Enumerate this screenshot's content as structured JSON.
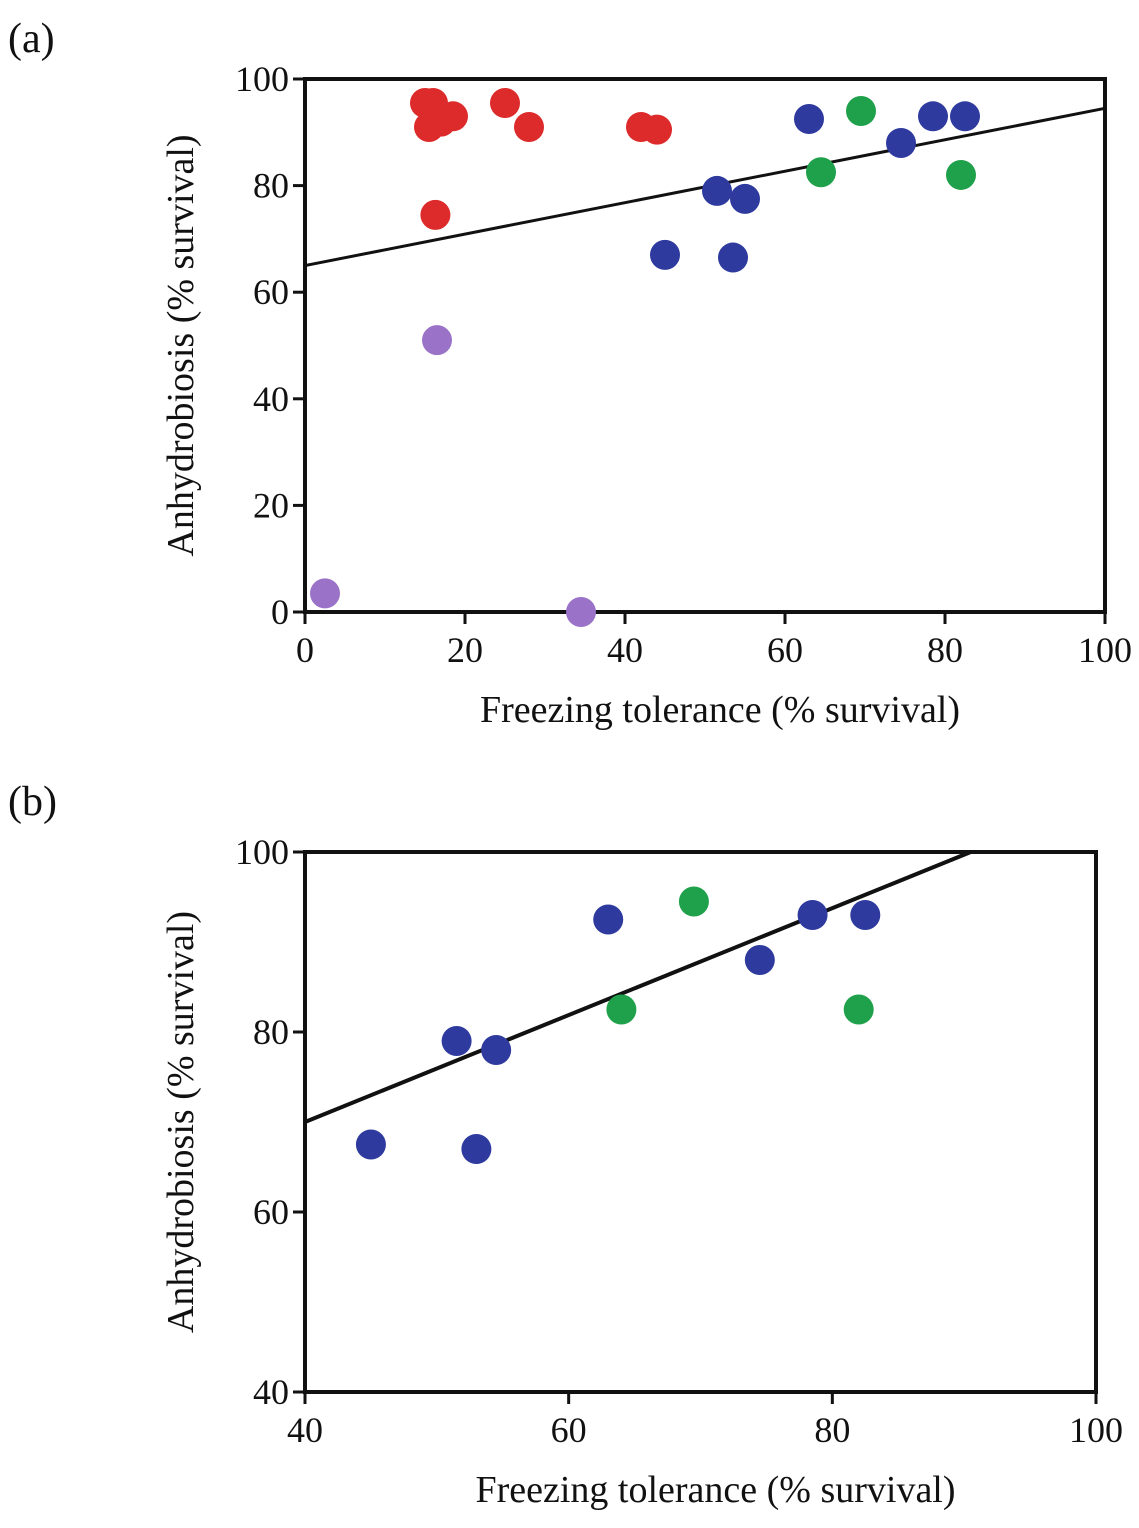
{
  "colors": {
    "red": "#dd2a2a",
    "blue": "#2e3a9e",
    "green": "#1fa04a",
    "purple": "#9a73c9",
    "line": "#111111"
  },
  "chart_data": [
    {
      "panel_label": "(a)",
      "type": "scatter",
      "xlabel": "Freezing tolerance (% survival)",
      "ylabel": "Anhydrobiosis (% survival)",
      "xlim": [
        0,
        100
      ],
      "ylim": [
        0,
        100
      ],
      "xticks": [
        0,
        20,
        40,
        60,
        80,
        100
      ],
      "yticks": [
        0,
        20,
        40,
        60,
        80,
        100
      ],
      "grid": false,
      "series": [
        {
          "color": "red",
          "points": [
            [
              15,
              95.5
            ],
            [
              16,
              95.5
            ],
            [
              15.5,
              91
            ],
            [
              17,
              92
            ],
            [
              18.5,
              93
            ],
            [
              25,
              95.5
            ],
            [
              28,
              91
            ],
            [
              42,
              91
            ],
            [
              44,
              90.5
            ],
            [
              16.3,
              74.5
            ]
          ]
        },
        {
          "color": "blue",
          "points": [
            [
              51.5,
              79
            ],
            [
              55,
              77.5
            ],
            [
              63,
              92.5
            ],
            [
              74.5,
              88
            ],
            [
              78.5,
              93
            ],
            [
              82.5,
              93
            ],
            [
              45,
              67
            ],
            [
              53.5,
              66.5
            ]
          ]
        },
        {
          "color": "green",
          "points": [
            [
              69.5,
              94
            ],
            [
              64.5,
              82.5
            ],
            [
              82,
              82
            ]
          ]
        },
        {
          "color": "purple",
          "points": [
            [
              16.5,
              51
            ],
            [
              2.5,
              3.5
            ],
            [
              34.5,
              0
            ]
          ]
        }
      ],
      "fit_line": [
        [
          0,
          65
        ],
        [
          100,
          94.5
        ]
      ]
    },
    {
      "panel_label": "(b)",
      "type": "scatter",
      "xlabel": "Freezing tolerance (% survival)",
      "ylabel": "Anhydrobiosis (% survival)",
      "xlim": [
        40,
        100
      ],
      "ylim": [
        40,
        100
      ],
      "xticks": [
        40,
        60,
        80,
        100
      ],
      "yticks": [
        40,
        60,
        80,
        100
      ],
      "grid": false,
      "series": [
        {
          "color": "blue",
          "points": [
            [
              45,
              67.5
            ],
            [
              51.5,
              79
            ],
            [
              54.5,
              78
            ],
            [
              53,
              67
            ],
            [
              63,
              92.5
            ],
            [
              74.5,
              88
            ],
            [
              78.5,
              93
            ],
            [
              82.5,
              93
            ]
          ]
        },
        {
          "color": "green",
          "points": [
            [
              69.5,
              94.5
            ],
            [
              64,
              82.5
            ],
            [
              82,
              82.5
            ]
          ]
        }
      ],
      "fit_line": [
        [
          40,
          70
        ],
        [
          90.5,
          100
        ]
      ]
    }
  ]
}
